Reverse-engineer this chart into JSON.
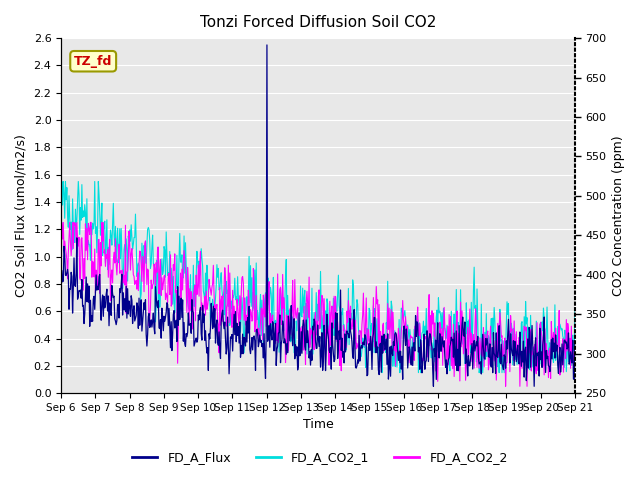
{
  "title": "Tonzi Forced Diffusion Soil CO2",
  "ylabel_left": "CO2 Soil Flux (umol/m2/s)",
  "ylabel_right": "CO2 Concentration (ppm)",
  "xlabel": "Time",
  "ylim_left": [
    0.0,
    2.6
  ],
  "ylim_right": [
    250,
    700
  ],
  "xtick_labels": [
    "Sep 6",
    "Sep 7",
    "Sep 8",
    "Sep 9",
    "Sep 10",
    "Sep 11",
    "Sep 12",
    "Sep 13",
    "Sep 14",
    "Sep 15",
    "Sep 16",
    "Sep 17",
    "Sep 18",
    "Sep 19",
    "Sep 20",
    "Sep 21"
  ],
  "annotation_text": "TZ_fd",
  "annotation_color": "#cc0000",
  "annotation_bg": "#ffffcc",
  "annotation_edge": "#999900",
  "line_flux_color": "#00008B",
  "line_co2_1_color": "#00DDDD",
  "line_co2_2_color": "#FF00FF",
  "legend_labels": [
    "FD_A_Flux",
    "FD_A_CO2_1",
    "FD_A_CO2_2"
  ],
  "background_color": "#e8e8e8",
  "grid_color": "#ffffff",
  "n_days": 15,
  "n_per_day": 48,
  "spike_day": 6,
  "spike_value": 2.55
}
